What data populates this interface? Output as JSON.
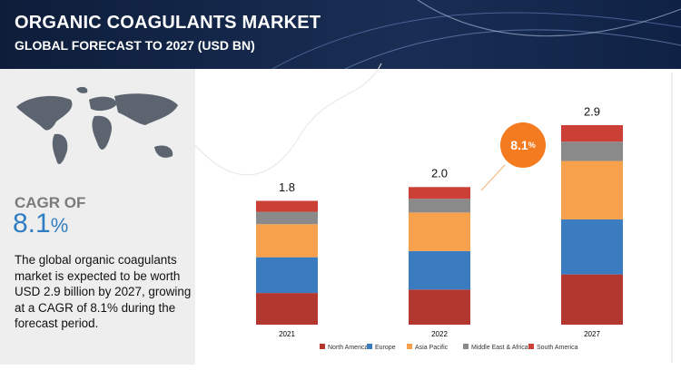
{
  "header": {
    "title": "ORGANIC COAGULANTS MARKET",
    "subtitle": "GLOBAL FORECAST TO 2027 (USD BN)"
  },
  "sidebar": {
    "cagr_label": "CAGR OF",
    "cagr_value": 8.1,
    "cagr_unit": "%",
    "description": "The global organic coagulants market is expected to be worth USD 2.9 billion by 2027, growing at a CAGR of 8.1% during the forecast period."
  },
  "chart_data": {
    "type": "stacked_bar",
    "categories": [
      "2021",
      "2022",
      "2027"
    ],
    "series": [
      {
        "name": "North America",
        "color": "#b3372f",
        "values": [
          0.46,
          0.51,
          0.73
        ]
      },
      {
        "name": "Europe",
        "color": "#3a7cbf",
        "values": [
          0.52,
          0.56,
          0.8
        ]
      },
      {
        "name": "Asia Pacific",
        "color": "#f8a14c",
        "values": [
          0.48,
          0.56,
          0.85
        ]
      },
      {
        "name": "Middle East & Africa",
        "color": "#8a8a8a",
        "values": [
          0.18,
          0.2,
          0.28
        ]
      },
      {
        "name": "South America",
        "color": "#cc3f36",
        "values": [
          0.16,
          0.17,
          0.24
        ]
      }
    ],
    "totals": {
      "values": [
        1.8,
        2.0,
        2.9
      ],
      "value_labels": [
        "1.8",
        "2.0",
        "2.9"
      ]
    },
    "badge": {
      "value": 8.1,
      "unit": "%"
    }
  }
}
